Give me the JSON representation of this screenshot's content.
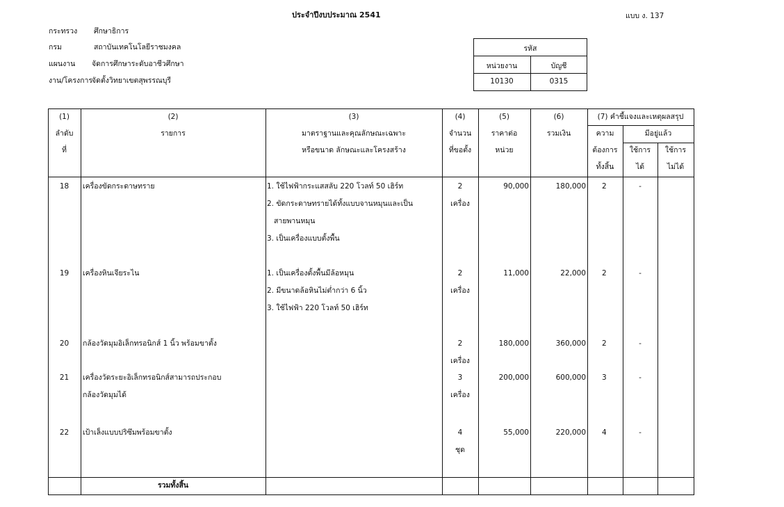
{
  "header": {
    "title": "ประจำปีงบประมาณ 2541",
    "form_code": "แบบ ง. 137",
    "fields": [
      {
        "label": "กระทรวง",
        "value": "ศึกษาธิการ"
      },
      {
        "label": "กรม",
        "value": "สถาบันเทคโนโลยีราชมงคล"
      },
      {
        "label": "แผนงาน",
        "value": "จัดการศึกษาระดับอาชีวศึกษา"
      },
      {
        "label": "งาน/โครงการ",
        "value": "จัดตั้งวิทยาเขตสุพรรณบุรี"
      }
    ],
    "code_box": {
      "title": "รหัส",
      "unit_label": "หน่วยงาน",
      "account_label": "บัญชี",
      "unit_value": "10130",
      "account_value": "0315"
    }
  },
  "table": {
    "headers": {
      "col1_num": "(1)",
      "col1_l1": "ลำดับ",
      "col1_l2": "ที่",
      "col2_num": "(2)",
      "col2_l1": "รายการ",
      "col3_num": "(3)",
      "col3_l1": "มาตราฐานและคุณลักษณะเฉพาะ",
      "col3_l2": "หรือขนาด ลักษณะและโครงสร้าง",
      "col4_num": "(4)",
      "col4_l1": "จำนวน",
      "col4_l2": "ที่ขอตั้ง",
      "col5_num": "(5)",
      "col5_l1": "ราคาต่อ",
      "col5_l2": "หน่วย",
      "col6_num": "(6)",
      "col6_l1": "รวมเงิน",
      "col7_title": "(7) คำชี้แจงและเหตุผลสรุป",
      "col7_need_l1": "ความ",
      "col7_need_l2": "ต้องการ",
      "col7_need_l3": "ทั้งสิ้น",
      "col7_have": "มีอยู่แล้ว",
      "col7_usable_l1": "ใช้การ",
      "col7_usable_l2": "ได้",
      "col7_unusable_l1": "ใช้การ",
      "col7_unusable_l2": "ไม่ได้"
    },
    "rows": [
      {
        "no": "18",
        "item": [
          "เครื่องขัดกระดาษทราย"
        ],
        "spec": [
          "1. ใช้ไฟฟ้ากระแสสลับ 220 โวลท์ 50 เฮิร์ท",
          "2. ขัดกระดาษทรายได้ทั้งแบบจานหมุนและเป็น",
          "   สายพานหมุน",
          "3. เป็นเครื่องแบบตั้งพื้น"
        ],
        "qty": "2",
        "unit": "เครื่อง",
        "price": "90,000",
        "total": "180,000",
        "need": "2",
        "usable": "-"
      },
      {
        "no": "19",
        "item": [
          "เครื่องหินเจียระไน"
        ],
        "spec": [
          "1. เป็นเครื่องตั้งพื้นมีล้อหมุน",
          "2. มีขนาดล้อหินไม่ต่ำกว่า 6 นิ้ว",
          "3. ใช้ไฟฟ้า 220 โวลท์ 50 เฮิร์ท"
        ],
        "qty": "2",
        "unit": "เครื่อง",
        "price": "11,000",
        "total": "22,000",
        "need": "2",
        "usable": "-"
      },
      {
        "no": "20",
        "item": [
          "กล้องวัดมุมอิเล็กทรอนิกส์ 1 นิ้ว พร้อมขาตั้ง"
        ],
        "spec": [],
        "qty": "2",
        "unit": "เครื่อง",
        "price": "180,000",
        "total": "360,000",
        "need": "2",
        "usable": "-"
      },
      {
        "no": "21",
        "item": [
          "เครื่องวัดระยะอิเล็กทรอนิกส์สามารถประกอบ",
          "กล้องวัดมุมได้"
        ],
        "spec": [],
        "qty": "3",
        "unit": "เครื่อง",
        "price": "200,000",
        "total": "600,000",
        "need": "3",
        "usable": "-"
      },
      {
        "no": "22",
        "item": [
          "เป้าเล็งแบบปริซึมพร้อมขาตั้ง"
        ],
        "spec": [],
        "qty": "4",
        "unit": "ชุด",
        "price": "55,000",
        "total": "220,000",
        "need": "4",
        "usable": "-"
      }
    ],
    "total_label": "รวมทั้งสิ้น"
  }
}
